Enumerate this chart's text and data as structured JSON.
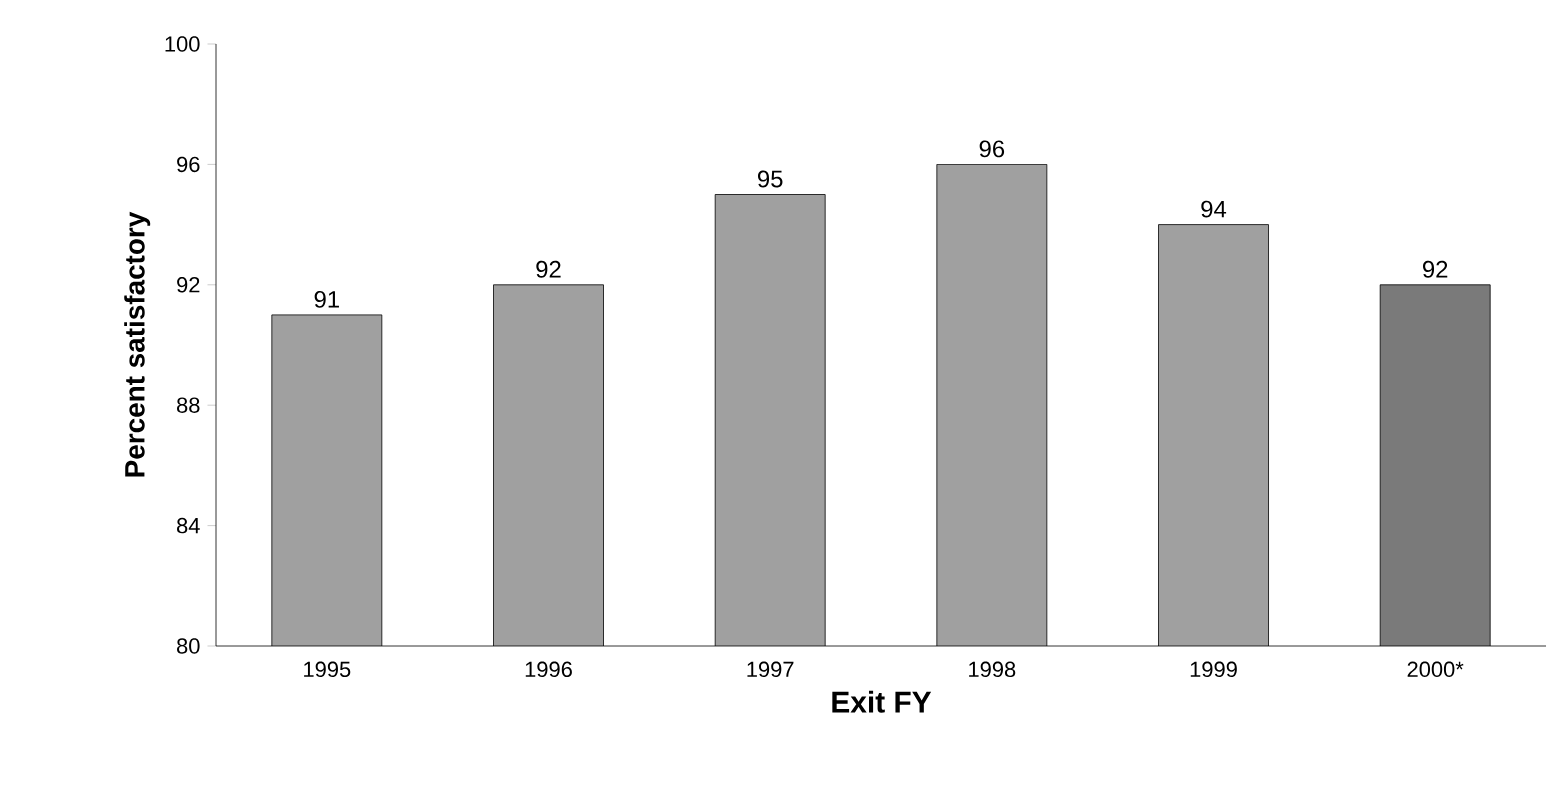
{
  "chart_data": {
    "type": "bar",
    "xlabel": "Exit FY",
    "ylabel": "Percent satisfactory",
    "categories": [
      "1995",
      "1996",
      "1997",
      "1998",
      "1999",
      "2000*"
    ],
    "values": [
      91,
      92,
      95,
      96,
      94,
      92
    ],
    "colors": [
      "#a0a0a0",
      "#a0a0a0",
      "#a0a0a0",
      "#a0a0a0",
      "#a0a0a0",
      "#7a7a7a"
    ],
    "ylim": [
      80,
      100
    ],
    "yticks": [
      80,
      84,
      88,
      92,
      96,
      100
    ],
    "data_labels": true,
    "grid": false
  }
}
